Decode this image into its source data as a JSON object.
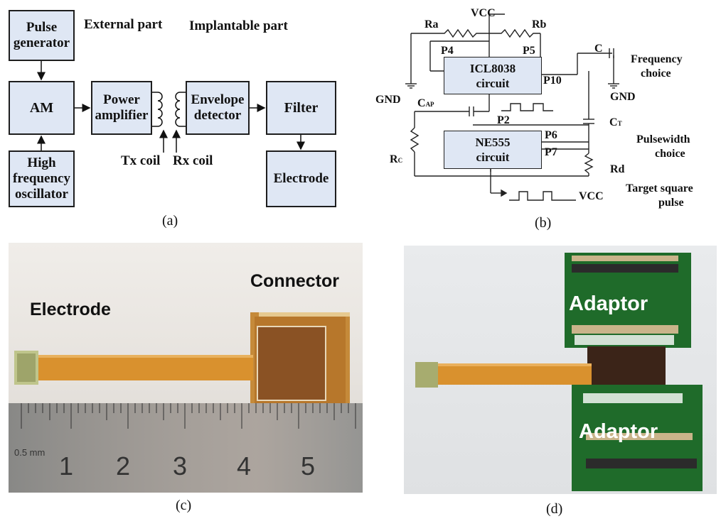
{
  "panel_a": {
    "caption": "(a)",
    "header_external": "External part",
    "header_implant": "Implantable part",
    "blocks": {
      "pulse_gen": [
        "Pulse",
        "generator"
      ],
      "am": [
        "AM"
      ],
      "hf_osc": [
        "High",
        "frequency",
        "oscillator"
      ],
      "power_amp": [
        "Power",
        "amplifier"
      ],
      "envelope": [
        "Envelope",
        "detector"
      ],
      "filter": [
        "Filter"
      ],
      "electrode": [
        "Electrode"
      ]
    },
    "tx_coil": "Tx coil",
    "rx_coil": "Rx coil"
  },
  "panel_b": {
    "caption": "(b)",
    "vcc_top": "VCC",
    "ra": "Ra",
    "rb": "Rb",
    "p4": "P4",
    "p5": "P5",
    "c": "C",
    "freq_choice_1": "Frequency",
    "freq_choice_2": "choice",
    "icl_1": "ICL8038",
    "icl_2": "circuit",
    "p10": "P10",
    "gnd_left": "GND",
    "cap_main": "C",
    "cap_sub": "AP",
    "gnd_right": "GND",
    "ne_1": "NE555",
    "ne_2": "circuit",
    "p2": "P2",
    "p6": "P6",
    "p7": "P7",
    "ct_main": "C",
    "ct_sub": "T",
    "pw_1": "Pulsewidth",
    "pw_2": "choice",
    "rc_main": "R",
    "rc_sub": "C",
    "rd": "Rd",
    "target_1": "Target square",
    "target_2": "pulse",
    "vcc_bottom": "VCC"
  },
  "panel_c": {
    "caption": "(c)",
    "electrode_label": "Electrode",
    "connector_label": "Connector",
    "ruler_unit": "0.5 mm",
    "ruler_numbers": [
      "1",
      "2",
      "3",
      "4",
      "5"
    ]
  },
  "panel_d": {
    "caption": "(d)",
    "adaptor_top": "Adaptor",
    "adaptor_bottom": "Adaptor"
  },
  "colors": {
    "block_fill": "#dfe7f4",
    "board_green": "#1f6b2a",
    "flex_orange": "#d9912e",
    "ruler_grey": "#8e8e8e"
  }
}
